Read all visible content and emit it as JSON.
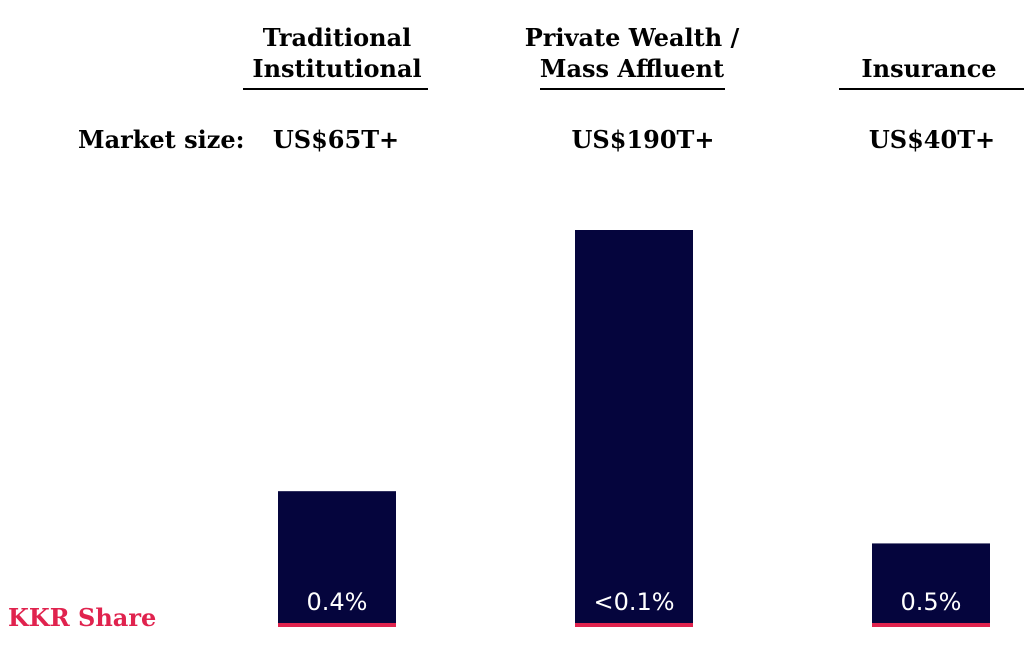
{
  "market_size_label": "Market size:",
  "kkr_share_label": "KKR Share",
  "colors": {
    "bar": "#05053d",
    "accent": "#e0234e",
    "bar_label": "#ffffff",
    "text": "#000000"
  },
  "chart_data": {
    "type": "bar",
    "categories": [
      "Traditional\nInstitutional",
      "Private Wealth /\nMass Affluent",
      "Insurance"
    ],
    "values": [
      65,
      190,
      40
    ],
    "market_size_labels": [
      "US$65T+",
      "US$190T+",
      "US$40T+"
    ],
    "data_labels": [
      "0.4%",
      "<0.1%",
      "0.5%"
    ],
    "ylim": [
      0,
      190
    ],
    "grid": false,
    "legend": "none"
  }
}
